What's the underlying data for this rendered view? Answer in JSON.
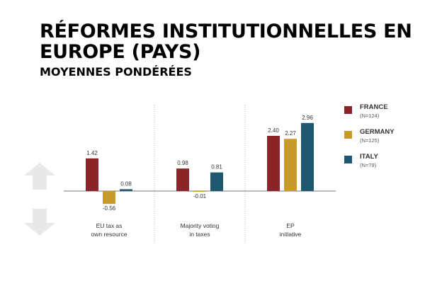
{
  "slide": {
    "title": "RÉFORMES INSTITUTIONNELLES EN EUROPE (PAYS)",
    "subtitle": "MOYENNES PONDÉRÉES"
  },
  "nav": {
    "up_icon": "arrow-up-icon",
    "down_icon": "arrow-down-icon",
    "icon_color": "#e8e8e8"
  },
  "legend": {
    "items": [
      {
        "label": "FRANCE",
        "n": "(N=124)"
      },
      {
        "label": "GERMANY",
        "n": "(N=125)"
      },
      {
        "label": "ITALY",
        "n": "(N=79)"
      }
    ]
  },
  "chart_data": {
    "type": "bar",
    "categories": [
      "EU tax as\nown resource",
      "Majority voting\nin taxes",
      "EP\ninitiative"
    ],
    "series": [
      {
        "name": "FRANCE",
        "color": "#8b2426",
        "values": [
          1.42,
          0.98,
          2.4
        ],
        "labels": [
          "1.42",
          "0.98",
          "2.40"
        ]
      },
      {
        "name": "GERMANY",
        "color": "#c89a2a",
        "values": [
          -0.56,
          -0.01,
          2.27
        ],
        "labels": [
          "-0.56",
          "-0.01",
          "2.27"
        ]
      },
      {
        "name": "ITALY",
        "color": "#1f5670",
        "values": [
          0.08,
          0.81,
          2.96
        ],
        "labels": [
          "0.08",
          "0.81",
          "2.96"
        ]
      }
    ],
    "ylim": [
      -0.8,
      3.7
    ],
    "grid": false,
    "legend_position": "right"
  }
}
